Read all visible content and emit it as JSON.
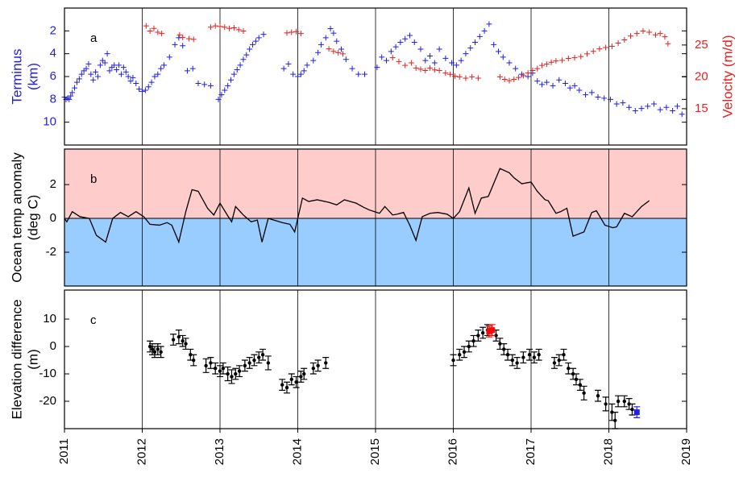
{
  "chart_data": [
    {
      "type": "scatter",
      "panel_label": "a",
      "ylabel": [
        "Terminus",
        "(km)"
      ],
      "y2label": "Velocity (m/d)",
      "xlim": [
        2011,
        2019
      ],
      "xticks": [
        2011,
        2012,
        2013,
        2014,
        2015,
        2016,
        2017,
        2018,
        2019
      ],
      "xtick_labels": false,
      "ylim": [
        12,
        0
      ],
      "yticks": [
        2,
        4,
        6,
        8,
        10
      ],
      "y2lim": [
        9.3,
        30.8
      ],
      "y2ticks": [
        15,
        20,
        25
      ],
      "series": [
        {
          "color": "#1f1fe6",
          "axis": "y",
          "x": [
            2011.0,
            2011.02,
            2011.04,
            2011.06,
            2011.08,
            2011.1,
            2011.13,
            2011.16,
            2011.19,
            2011.22,
            2011.25,
            2011.28,
            2011.31,
            2011.34,
            2011.37,
            2011.4,
            2011.43,
            2011.46,
            2011.49,
            2011.52,
            2011.55,
            2011.58,
            2011.61,
            2011.64,
            2011.67,
            2011.7,
            2011.73,
            2011.76,
            2011.79,
            2011.82,
            2011.85,
            2011.88,
            2011.92,
            2011.96,
            2012.0,
            2012.04,
            2012.08,
            2012.12,
            2012.16,
            2012.2,
            2012.24,
            2012.28,
            2012.35,
            2012.42,
            2012.47,
            2012.52,
            2012.58,
            2012.65,
            2012.72,
            2012.8,
            2012.88,
            2012.98,
            2013.02,
            2013.06,
            2013.1,
            2013.14,
            2013.18,
            2013.22,
            2013.26,
            2013.3,
            2013.34,
            2013.38,
            2013.42,
            2013.46,
            2013.5,
            2013.56,
            2013.82,
            2013.88,
            2013.94,
            2014.0,
            2014.04,
            2014.08,
            2014.12,
            2014.2,
            2014.26,
            2014.3,
            2014.36,
            2014.42,
            2014.46,
            2014.5,
            2014.56,
            2014.62,
            2014.7,
            2014.78,
            2014.86,
            2015.02,
            2015.08,
            2015.14,
            2015.2,
            2015.26,
            2015.32,
            2015.38,
            2015.44,
            2015.5,
            2015.58,
            2015.64,
            2015.7,
            2015.76,
            2015.82,
            2015.9,
            2015.98,
            2016.04,
            2016.1,
            2016.16,
            2016.22,
            2016.28,
            2016.34,
            2016.4,
            2016.46,
            2016.52,
            2016.58,
            2016.64,
            2016.72,
            2016.8,
            2016.88,
            2016.96,
            2017.02,
            2017.08,
            2017.14,
            2017.2,
            2017.28,
            2017.36,
            2017.44,
            2017.5,
            2017.56,
            2017.62,
            2017.7,
            2017.78,
            2017.86,
            2017.94,
            2018.02,
            2018.1,
            2018.18,
            2018.26,
            2018.34,
            2018.42,
            2018.5,
            2018.58,
            2018.66,
            2018.74,
            2018.82,
            2018.88,
            2018.94
          ],
          "values": [
            7.8,
            8.0,
            7.9,
            8.0,
            7.7,
            7.4,
            7.0,
            6.5,
            6.2,
            5.8,
            5.5,
            5.3,
            4.9,
            5.8,
            6.3,
            5.6,
            6.0,
            5.0,
            4.6,
            4.8,
            4.0,
            5.5,
            5.2,
            5.0,
            5.4,
            5.0,
            5.8,
            5.2,
            5.6,
            6.0,
            6.4,
            6.1,
            6.6,
            7.1,
            7.3,
            7.2,
            6.9,
            6.5,
            6.0,
            5.8,
            5.3,
            5.0,
            4.3,
            3.2,
            2.6,
            3.3,
            5.5,
            5.3,
            6.6,
            6.7,
            6.8,
            8.0,
            7.6,
            7.2,
            6.8,
            6.3,
            5.8,
            5.4,
            5.0,
            4.5,
            4.1,
            3.6,
            3.2,
            2.9,
            2.6,
            2.3,
            5.3,
            4.9,
            5.8,
            6.0,
            5.8,
            5.5,
            5.0,
            4.6,
            3.9,
            3.2,
            2.6,
            1.8,
            2.2,
            2.9,
            3.6,
            4.5,
            5.3,
            5.8,
            5.8,
            5.2,
            4.3,
            4.6,
            3.8,
            3.4,
            3.0,
            2.7,
            2.4,
            3.0,
            3.6,
            4.6,
            4.2,
            4.8,
            3.6,
            4.4,
            4.8,
            5.0,
            4.6,
            4.0,
            3.5,
            3.0,
            2.5,
            2.0,
            1.4,
            3.2,
            3.8,
            4.3,
            4.8,
            5.3,
            5.8,
            6.0,
            5.7,
            6.4,
            6.7,
            6.5,
            6.8,
            6.3,
            6.6,
            7.0,
            6.8,
            7.2,
            7.6,
            7.4,
            7.8,
            7.9,
            8.0,
            8.4,
            8.3,
            8.7,
            9.0,
            8.8,
            8.6,
            8.4,
            8.9,
            8.7,
            9.0,
            8.6,
            9.3
          ]
        },
        {
          "color": "#e61f1f",
          "axis": "y2",
          "x": [
            2012.05,
            2012.1,
            2012.15,
            2012.2,
            2012.25,
            2012.48,
            2012.52,
            2012.6,
            2012.66,
            2012.88,
            2012.94,
            2013.0,
            2013.06,
            2013.12,
            2013.18,
            2013.24,
            2013.3,
            2013.86,
            2013.92,
            2013.98,
            2014.04,
            2014.4,
            2014.46,
            2014.52,
            2014.58,
            2015.22,
            2015.3,
            2015.38,
            2015.46,
            2015.52,
            2015.58,
            2015.64,
            2015.7,
            2015.76,
            2015.82,
            2015.9,
            2015.96,
            2016.02,
            2016.08,
            2016.16,
            2016.24,
            2016.32,
            2016.6,
            2016.66,
            2016.72,
            2016.78,
            2016.84,
            2016.9,
            2016.96,
            2017.02,
            2017.08,
            2017.14,
            2017.2,
            2017.26,
            2017.32,
            2017.4,
            2017.48,
            2017.56,
            2017.64,
            2017.72,
            2017.8,
            2017.88,
            2017.96,
            2018.04,
            2018.12,
            2018.2,
            2018.28,
            2018.36,
            2018.44,
            2018.52,
            2018.6,
            2018.66,
            2018.72,
            2018.76
          ],
          "values": [
            28.0,
            27.2,
            27.6,
            27.0,
            26.8,
            26.6,
            26.2,
            26.0,
            25.9,
            27.8,
            28.0,
            27.9,
            27.8,
            27.6,
            27.7,
            27.4,
            27.2,
            26.9,
            27.0,
            27.1,
            26.8,
            24.4,
            24.0,
            23.8,
            23.6,
            23.0,
            22.4,
            21.8,
            22.2,
            21.4,
            21.2,
            21.0,
            21.4,
            21.1,
            21.0,
            20.6,
            20.4,
            20.1,
            20.0,
            19.8,
            20.0,
            19.8,
            20.0,
            19.6,
            19.4,
            19.6,
            19.9,
            20.2,
            20.6,
            21.0,
            21.3,
            21.8,
            22.0,
            22.3,
            22.5,
            22.6,
            22.9,
            23.0,
            23.2,
            23.6,
            24.0,
            24.4,
            24.6,
            24.8,
            25.3,
            25.8,
            26.4,
            26.8,
            27.2,
            27.0,
            26.6,
            26.8,
            26.3,
            25.2
          ]
        }
      ]
    },
    {
      "type": "line",
      "panel_label": "b",
      "ylabel": [
        "Ocean temp anomaly",
        "(deg C)"
      ],
      "xlim": [
        2011,
        2019
      ],
      "xticks": [
        2011,
        2012,
        2013,
        2014,
        2015,
        2016,
        2017,
        2018,
        2019
      ],
      "xtick_labels": false,
      "ylim": [
        -4,
        4.1
      ],
      "yticks": [
        -2,
        0,
        2
      ],
      "fill_above_color": "#ffcccc",
      "fill_below_color": "#99ccff",
      "series": [
        {
          "color": "#000000",
          "x": [
            2011.0,
            2011.03,
            2011.1,
            2011.2,
            2011.32,
            2011.41,
            2011.53,
            2011.62,
            2011.72,
            2011.82,
            2011.92,
            2012.02,
            2012.1,
            2012.22,
            2012.32,
            2012.38,
            2012.47,
            2012.56,
            2012.64,
            2012.72,
            2012.84,
            2012.92,
            2013.0,
            2013.1,
            2013.15,
            2013.2,
            2013.3,
            2013.4,
            2013.48,
            2013.54,
            2013.62,
            2013.8,
            2013.9,
            2013.96,
            2014.06,
            2014.14,
            2014.25,
            2014.4,
            2014.5,
            2014.6,
            2014.75,
            2014.85,
            2014.92,
            2015.05,
            2015.12,
            2015.22,
            2015.28,
            2015.36,
            2015.44,
            2015.52,
            2015.6,
            2015.7,
            2015.8,
            2015.92,
            2016.0,
            2016.08,
            2016.2,
            2016.28,
            2016.36,
            2016.45,
            2016.6,
            2016.72,
            2016.78,
            2016.88,
            2017.0,
            2017.08,
            2017.18,
            2017.22,
            2017.32,
            2017.38,
            2017.46,
            2017.54,
            2017.68,
            2017.78,
            2017.84,
            2017.95,
            2018.05,
            2018.1,
            2018.2,
            2018.3,
            2018.42,
            2018.52
          ],
          "values": [
            0.0,
            -0.2,
            0.4,
            0.1,
            0.0,
            -1.0,
            -1.4,
            0.0,
            0.35,
            0.1,
            0.4,
            0.1,
            -0.35,
            -0.4,
            -0.25,
            -0.4,
            -1.4,
            0.4,
            1.7,
            1.6,
            0.6,
            0.2,
            0.9,
            0.15,
            -0.2,
            0.7,
            0.2,
            -0.2,
            -0.1,
            -1.4,
            0.0,
            -0.25,
            -0.35,
            -0.8,
            1.2,
            1.0,
            1.1,
            0.95,
            0.8,
            1.1,
            0.9,
            0.65,
            0.5,
            0.3,
            0.7,
            0.2,
            0.25,
            0.35,
            -0.4,
            -1.3,
            0.1,
            0.3,
            0.35,
            0.25,
            0.0,
            0.4,
            1.8,
            0.3,
            1.2,
            1.3,
            2.95,
            2.7,
            2.4,
            2.05,
            2.15,
            1.6,
            1.1,
            1.05,
            0.3,
            0.4,
            0.6,
            -1.05,
            -0.8,
            0.35,
            0.45,
            -0.4,
            -0.55,
            -0.5,
            0.3,
            0.1,
            0.7,
            1.05
          ]
        }
      ]
    },
    {
      "type": "errorbar",
      "panel_label": "c",
      "ylabel": [
        "Elevation difference",
        "(m)"
      ],
      "xlim": [
        2011,
        2019
      ],
      "xticks": [
        2011,
        2012,
        2013,
        2014,
        2015,
        2016,
        2017,
        2018,
        2019
      ],
      "xtick_labels": true,
      "ylim": [
        -30,
        20.6
      ],
      "yticks": [
        -20,
        -10,
        0,
        10
      ],
      "series": [
        {
          "color": "#000000",
          "marker": "circle",
          "x": [
            2012.1,
            2012.13,
            2012.16,
            2012.2,
            2012.24,
            2012.4,
            2012.47,
            2012.52,
            2012.56,
            2012.62,
            2012.66,
            2012.82,
            2012.88,
            2012.94,
            2013.0,
            2013.04,
            2013.1,
            2013.15,
            2013.2,
            2013.25,
            2013.32,
            2013.38,
            2013.44,
            2013.5,
            2013.55,
            2013.62,
            2013.8,
            2013.86,
            2013.92,
            2013.98,
            2014.04,
            2014.08,
            2014.2,
            2014.26,
            2014.36,
            2016.0,
            2016.08,
            2016.14,
            2016.2,
            2016.26,
            2016.32,
            2016.38,
            2016.44,
            2016.55,
            2016.6,
            2016.65,
            2016.7,
            2016.76,
            2016.82,
            2016.9,
            2016.98,
            2017.04,
            2017.1,
            2017.3,
            2017.36,
            2017.42,
            2017.48,
            2017.54,
            2017.58,
            2017.63,
            2017.68,
            2017.86,
            2017.96,
            2018.04,
            2018.08,
            2018.12,
            2018.2,
            2018.26,
            2018.3
          ],
          "values": [
            0,
            -1,
            -2,
            -1,
            -2,
            2.5,
            3.5,
            2,
            1,
            -3,
            -5,
            -7,
            -6,
            -8,
            -9,
            -8,
            -10,
            -11,
            -10,
            -9,
            -7,
            -6,
            -5,
            -4,
            -3,
            -6,
            -14,
            -15,
            -12,
            -13,
            -11,
            -10,
            -8,
            -7,
            -6,
            -5,
            -3,
            -2,
            0,
            2,
            4,
            5,
            6,
            4,
            1,
            -1,
            -3,
            -5,
            -6,
            -4,
            -3,
            -4,
            -3,
            -6,
            -5,
            -3,
            -8,
            -10,
            -12,
            -14,
            -17,
            -18,
            -21,
            -24,
            -27,
            -20,
            -20,
            -21,
            -23
          ],
          "errors": [
            2,
            2,
            2,
            2,
            2,
            2,
            2.5,
            2,
            2,
            2,
            2,
            2.5,
            2,
            2,
            2,
            2,
            2.5,
            2.5,
            2,
            2,
            2,
            2,
            2,
            2,
            2,
            2.5,
            2,
            2,
            2,
            2,
            2,
            2,
            2,
            2,
            2,
            2,
            2,
            2,
            2,
            2,
            2,
            2,
            2,
            2,
            2,
            2,
            2,
            2,
            2,
            2,
            2,
            2,
            2,
            2,
            2,
            2,
            2,
            2,
            2,
            2,
            2.5,
            2,
            2.5,
            3,
            3,
            2,
            2,
            2,
            2
          ]
        },
        {
          "color": "#ff0000",
          "marker": "square",
          "x": [
            2016.46,
            2016.5
          ],
          "values": [
            5.5,
            6
          ],
          "errors": [
            2,
            2
          ]
        },
        {
          "color": "#1f1fe6",
          "marker": "square",
          "x": [
            2018.36
          ],
          "values": [
            -24
          ],
          "errors": [
            2
          ]
        }
      ]
    }
  ]
}
